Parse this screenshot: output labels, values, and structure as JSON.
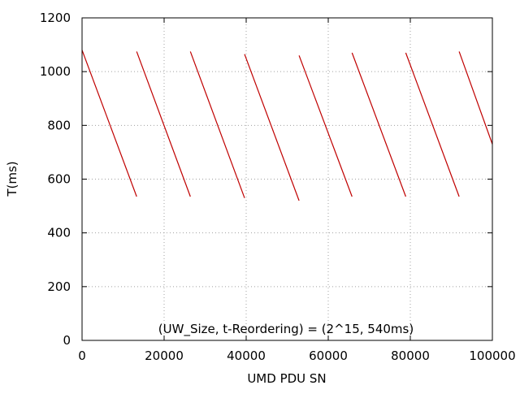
{
  "chart_data": {
    "type": "line",
    "title": "",
    "xlabel": "UMD PDU SN",
    "ylabel": "T(ms)",
    "xlim": [
      0,
      100000
    ],
    "ylim": [
      0,
      1200
    ],
    "x_ticks": [
      "0",
      "20000",
      "40000",
      "60000",
      "80000",
      "100000"
    ],
    "y_ticks": [
      "0",
      "200",
      "400",
      "600",
      "800",
      "1000",
      "1200"
    ],
    "grid": true,
    "legend": {
      "label": "(UW_Size, t-Reordering) = (2^15, 540ms)",
      "placement": "bottom-center"
    },
    "series_color": "#c00000",
    "series": [
      {
        "segments": [
          {
            "x": [
              0,
              13300
            ],
            "y": [
              1080,
              535
            ]
          },
          {
            "x": [
              13300,
              26400
            ],
            "y": [
              1075,
              535
            ]
          },
          {
            "x": [
              26400,
              39600
            ],
            "y": [
              1075,
              530
            ]
          },
          {
            "x": [
              39600,
              52900
            ],
            "y": [
              1065,
              520
            ]
          },
          {
            "x": [
              52900,
              65800
            ],
            "y": [
              1060,
              535
            ]
          },
          {
            "x": [
              65800,
              78900
            ],
            "y": [
              1070,
              535
            ]
          },
          {
            "x": [
              78900,
              91900
            ],
            "y": [
              1070,
              535
            ]
          },
          {
            "x": [
              91900,
              100000
            ],
            "y": [
              1075,
              730
            ]
          }
        ]
      }
    ]
  }
}
